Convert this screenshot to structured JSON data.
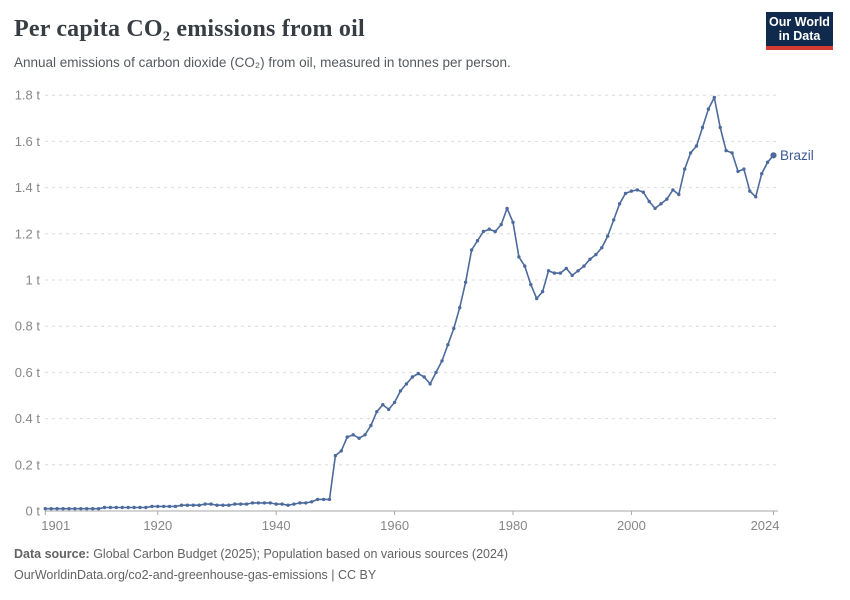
{
  "header": {
    "title": "Per capita CO₂ emissions from oil",
    "subtitle": "Annual emissions of carbon dioxide (CO₂) from oil, measured in tonnes per person.",
    "logo": {
      "line1": "Our World",
      "line2": "in Data"
    }
  },
  "chart_data": {
    "type": "line",
    "title": "Per capita CO₂ emissions from oil",
    "unit": "tonnes per person",
    "grid": "horizontal dashed",
    "legend_position": "end-of-line label",
    "x_range": [
      1901,
      2024
    ],
    "ylim": [
      0,
      1.85
    ],
    "line_color": "#4c6a9c",
    "label_color": "#3d5a94",
    "axis_color": "#a7a7a7",
    "grid_color": "#dcdcdc",
    "xticks": [
      1901,
      1920,
      1940,
      1960,
      1980,
      2000,
      2024
    ],
    "yticks": [
      {
        "value": 0,
        "label": "0 t"
      },
      {
        "value": 0.2,
        "label": "0.2 t"
      },
      {
        "value": 0.4,
        "label": "0.4 t"
      },
      {
        "value": 0.6,
        "label": "0.6 t"
      },
      {
        "value": 0.8,
        "label": "0.8 t"
      },
      {
        "value": 1,
        "label": "1 t"
      },
      {
        "value": 1.2,
        "label": "1.2 t"
      },
      {
        "value": 1.4,
        "label": "1.4 t"
      },
      {
        "value": 1.6,
        "label": "1.6 t"
      },
      {
        "value": 1.8,
        "label": "1.8 t"
      }
    ],
    "years": [
      1901,
      1902,
      1903,
      1904,
      1905,
      1906,
      1907,
      1908,
      1909,
      1910,
      1911,
      1912,
      1913,
      1914,
      1915,
      1916,
      1917,
      1918,
      1919,
      1920,
      1921,
      1922,
      1923,
      1924,
      1925,
      1926,
      1927,
      1928,
      1929,
      1930,
      1931,
      1932,
      1933,
      1934,
      1935,
      1936,
      1937,
      1938,
      1939,
      1940,
      1941,
      1942,
      1943,
      1944,
      1945,
      1946,
      1947,
      1948,
      1949,
      1950,
      1951,
      1952,
      1953,
      1954,
      1955,
      1956,
      1957,
      1958,
      1959,
      1960,
      1961,
      1962,
      1963,
      1964,
      1965,
      1966,
      1967,
      1968,
      1969,
      1970,
      1971,
      1972,
      1973,
      1974,
      1975,
      1976,
      1977,
      1978,
      1979,
      1980,
      1981,
      1982,
      1983,
      1984,
      1985,
      1986,
      1987,
      1988,
      1989,
      1990,
      1991,
      1992,
      1993,
      1994,
      1995,
      1996,
      1997,
      1998,
      1999,
      2000,
      2001,
      2002,
      2003,
      2004,
      2005,
      2006,
      2007,
      2008,
      2009,
      2010,
      2011,
      2012,
      2013,
      2014,
      2015,
      2016,
      2017,
      2018,
      2019,
      2020,
      2021,
      2022,
      2023,
      2024
    ],
    "series": [
      {
        "name": "Brazil",
        "values": [
          0.01,
          0.01,
          0.01,
          0.01,
          0.01,
          0.01,
          0.01,
          0.01,
          0.01,
          0.01,
          0.015,
          0.015,
          0.015,
          0.015,
          0.015,
          0.015,
          0.015,
          0.015,
          0.02,
          0.02,
          0.02,
          0.02,
          0.02,
          0.025,
          0.025,
          0.025,
          0.025,
          0.03,
          0.03,
          0.025,
          0.025,
          0.025,
          0.03,
          0.03,
          0.03,
          0.035,
          0.035,
          0.035,
          0.035,
          0.03,
          0.03,
          0.025,
          0.03,
          0.035,
          0.035,
          0.04,
          0.05,
          0.05,
          0.05,
          0.24,
          0.26,
          0.32,
          0.33,
          0.315,
          0.33,
          0.37,
          0.43,
          0.46,
          0.44,
          0.47,
          0.52,
          0.55,
          0.58,
          0.595,
          0.58,
          0.55,
          0.6,
          0.65,
          0.72,
          0.79,
          0.88,
          0.99,
          1.13,
          1.17,
          1.21,
          1.22,
          1.21,
          1.24,
          1.31,
          1.25,
          1.1,
          1.06,
          0.98,
          0.92,
          0.95,
          1.04,
          1.03,
          1.03,
          1.05,
          1.02,
          1.04,
          1.06,
          1.09,
          1.11,
          1.14,
          1.19,
          1.26,
          1.33,
          1.375,
          1.385,
          1.39,
          1.38,
          1.34,
          1.31,
          1.33,
          1.35,
          1.39,
          1.37,
          1.48,
          1.55,
          1.58,
          1.66,
          1.74,
          1.79,
          1.66,
          1.56,
          1.55,
          1.47,
          1.48,
          1.385,
          1.36,
          1.46,
          1.51,
          1.54
        ]
      }
    ]
  },
  "footer": {
    "source_bold": "Data source:",
    "source_rest": " Global Carbon Budget (2025); Population based on various sources (2024)",
    "line2": "OurWorldinData.org/co2-and-greenhouse-gas-emissions | CC BY"
  }
}
